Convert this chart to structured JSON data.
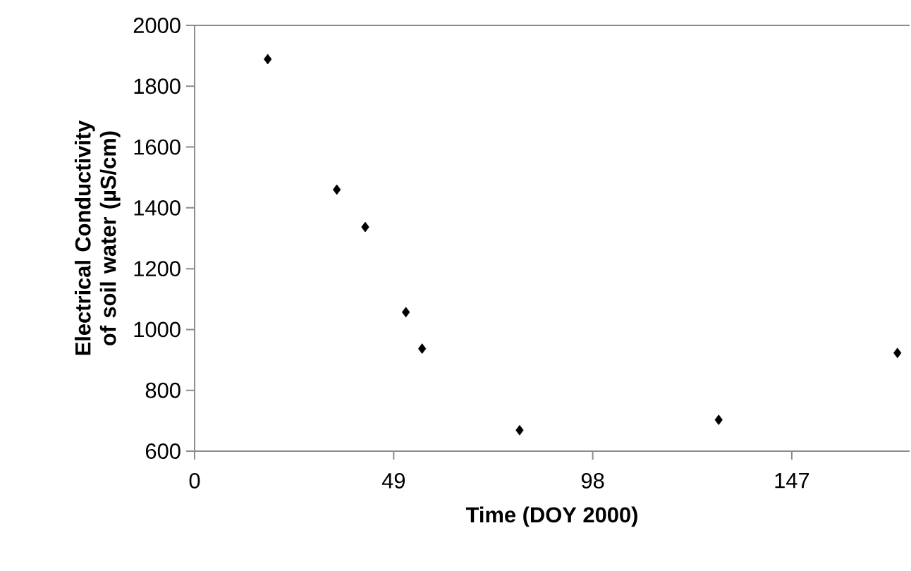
{
  "chart_data": {
    "type": "scatter",
    "xlabel": "Time (DOY 2000)",
    "ylabel": "Electrical Conductivity of soil water (µS/cm)",
    "x": [
      18,
      35,
      42,
      52,
      56,
      80,
      129,
      173
    ],
    "values": [
      1889,
      1460,
      1337,
      1057,
      937,
      669,
      703,
      923
    ],
    "color": "#000000",
    "marker": "diamond",
    "xlim": [
      0,
      176
    ],
    "xticks": [
      0,
      49,
      98,
      147
    ],
    "ylim": [
      600,
      2000
    ],
    "yticks": [
      600,
      800,
      1000,
      1200,
      1400,
      1600,
      1800,
      2000
    ]
  }
}
